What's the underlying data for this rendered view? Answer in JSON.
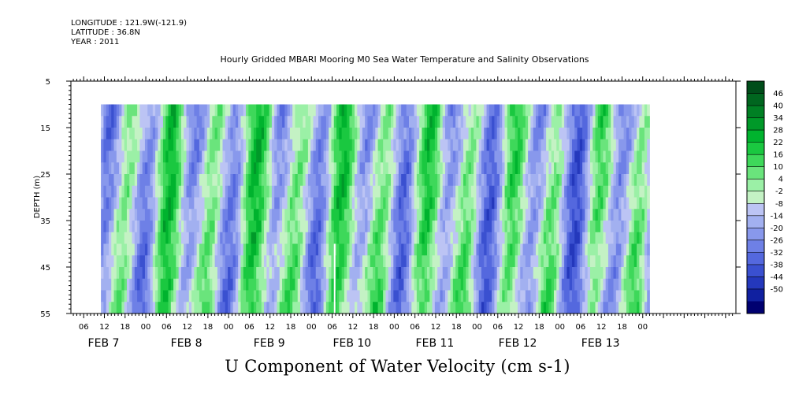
{
  "header": {
    "longitude": "LONGITUDE : 121.9W(-121.9)",
    "latitude": "LATITUDE : 36.8N",
    "year": "YEAR : 2011",
    "plot_title": "Hourly Gridded MBARI Mooring M0 Sea Water Temperature and Salinity Observations"
  },
  "chart_data": {
    "type": "heatmap",
    "title": "U Component of Water Velocity (cm s-1)",
    "ylabel": "DEPTH (m)",
    "xlabel": "",
    "ylim": [
      55,
      5
    ],
    "y_inverted": true,
    "y_ticks": [
      5,
      15,
      25,
      35,
      45,
      55
    ],
    "x_hour_ticks": [
      "06",
      "12",
      "18",
      "00",
      "06",
      "12",
      "18",
      "00",
      "06",
      "12",
      "18",
      "00",
      "06",
      "12",
      "18",
      "00",
      "06",
      "12",
      "18",
      "00",
      "06",
      "12",
      "18",
      "00",
      "06",
      "12",
      "18",
      "00"
    ],
    "x_day_labels": [
      "FEB  7",
      "FEB  8",
      "FEB  9",
      "FEB 10",
      "FEB 11",
      "FEB 12",
      "FEB 13"
    ],
    "data_extent": {
      "start": "2011-02-07 11:00",
      "end": "2011-02-14 02:00",
      "depth_min": 10,
      "depth_max": 55
    },
    "colorbar": {
      "levels": [
        "46",
        "40",
        "34",
        "28",
        "22",
        "16",
        "10",
        "4",
        "-2",
        "-8",
        "-14",
        "-20",
        "-26",
        "-32",
        "-38",
        "-44",
        "-50"
      ],
      "colors": [
        "#004d1a",
        "#00661f",
        "#008024",
        "#009929",
        "#00b32e",
        "#1ac840",
        "#3ed85a",
        "#6ae47c",
        "#9bf0a6",
        "#c4f2c4",
        "#bcc4f4",
        "#a2b0f0",
        "#8898ec",
        "#6e80e6",
        "#5468de",
        "#3a50d0",
        "#2438bc",
        "#1020a0",
        "#000070"
      ],
      "range": [
        -50,
        52
      ]
    }
  }
}
